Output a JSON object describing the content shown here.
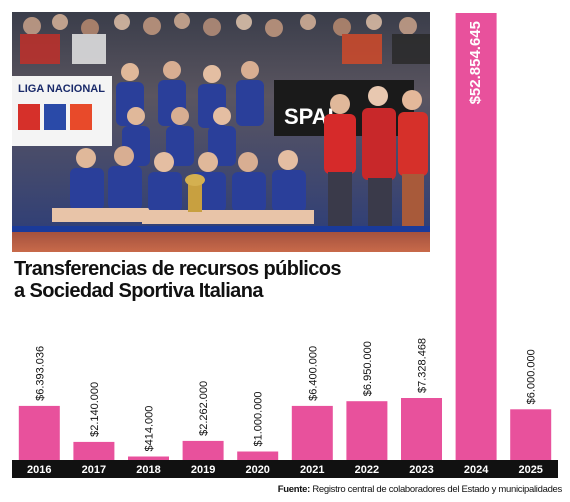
{
  "title": {
    "line1": "Transferencias de recursos públicos",
    "line2": "a Sociedad Sportiva Italiana"
  },
  "photo": {
    "banner_left": "LIGA NACIONAL",
    "banner_right": "SPAL"
  },
  "source": {
    "label": "Fuente:",
    "text": "Registro central de colaboradores del Estado y municipalidades"
  },
  "colors": {
    "bar": "#e8519c",
    "axis_band": "#111111",
    "year_text": "#ffffff",
    "value_text": "#111111",
    "value_text_on_bar": "#ffffff"
  },
  "chart_data": {
    "type": "bar",
    "categories": [
      "2016",
      "2017",
      "2018",
      "2019",
      "2020",
      "2021",
      "2022",
      "2023",
      "2024",
      "2025"
    ],
    "values": [
      6393036,
      2140000,
      414000,
      2262000,
      1000000,
      6400000,
      6950000,
      7328468,
      52854645,
      6000000
    ],
    "value_labels": [
      "$6.393.036",
      "$2.140.000",
      "$414.000",
      "$2.262.000",
      "$1.000.000",
      "$6.400.000",
      "$6.950.000",
      "$7.328.468",
      "$52.854.645",
      "$6.000.000"
    ],
    "title": "Transferencias de recursos públicos a Sociedad Sportiva Italiana",
    "xlabel": "",
    "ylabel": "",
    "ylim": [
      0,
      52854645
    ],
    "grid": false,
    "legend": "none"
  }
}
